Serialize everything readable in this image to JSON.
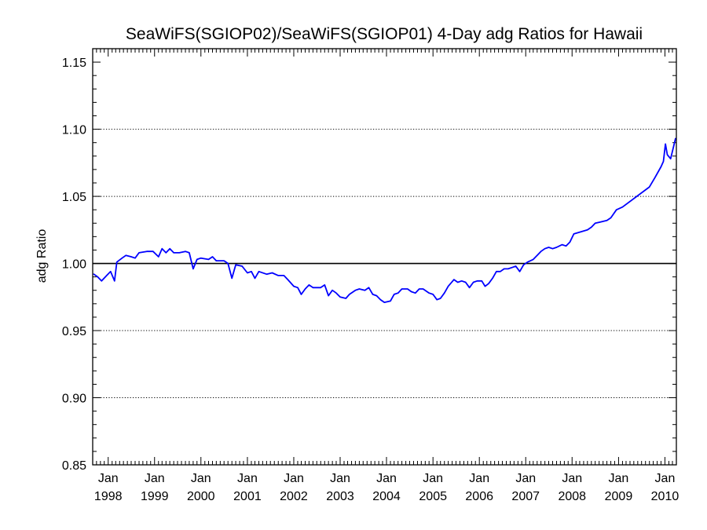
{
  "chart_data": {
    "type": "line",
    "title": "SeaWiFS(SGIOP02)/SeaWiFS(SGIOP01) 4-Day adg Ratios for Hawaii",
    "xlabel": "",
    "ylabel": "adg Ratio",
    "ylim": [
      0.85,
      1.16
    ],
    "xlim": [
      "1997-09-01",
      "2010-04-01"
    ],
    "y_ticks": [
      "0.85",
      "0.90",
      "0.95",
      "1.00",
      "1.05",
      "1.10",
      "1.15"
    ],
    "grid": "horizontal dotted lines at 0.90, 0.95, 1.05, 1.10",
    "reference_line": 1.0,
    "x_ticks": [
      {
        "month": "Jan",
        "year": "1998"
      },
      {
        "month": "Jan",
        "year": "1999"
      },
      {
        "month": "Jan",
        "year": "2000"
      },
      {
        "month": "Jan",
        "year": "2001"
      },
      {
        "month": "Jan",
        "year": "2002"
      },
      {
        "month": "Jan",
        "year": "2003"
      },
      {
        "month": "Jan",
        "year": "2004"
      },
      {
        "month": "Jan",
        "year": "2005"
      },
      {
        "month": "Jan",
        "year": "2006"
      },
      {
        "month": "Jan",
        "year": "2007"
      },
      {
        "month": "Jan",
        "year": "2008"
      },
      {
        "month": "Jan",
        "year": "2009"
      },
      {
        "month": "Jan",
        "year": "2010"
      }
    ],
    "series": [
      {
        "color": "#0000ff",
        "points": [
          [
            "1997-09-10",
            0.992
          ],
          [
            "1997-10-10",
            0.99
          ],
          [
            "1997-11-10",
            0.987
          ],
          [
            "1997-12-20",
            0.991
          ],
          [
            "1998-01-20",
            0.994
          ],
          [
            "1998-02-20",
            0.987
          ],
          [
            "1998-03-10",
            1.001
          ],
          [
            "1998-04-20",
            1.004
          ],
          [
            "1998-05-20",
            1.006
          ],
          [
            "1998-07-01",
            1.005
          ],
          [
            "1998-08-01",
            1.004
          ],
          [
            "1998-09-01",
            1.008
          ],
          [
            "1998-11-01",
            1.009
          ],
          [
            "1998-12-20",
            1.009
          ],
          [
            "1999-02-01",
            1.005
          ],
          [
            "1999-03-01",
            1.011
          ],
          [
            "1999-04-01",
            1.008
          ],
          [
            "1999-05-01",
            1.011
          ],
          [
            "1999-06-01",
            1.008
          ],
          [
            "1999-07-15",
            1.008
          ],
          [
            "1999-09-01",
            1.009
          ],
          [
            "1999-10-01",
            1.008
          ],
          [
            "1999-11-01",
            0.996
          ],
          [
            "1999-12-01",
            1.003
          ],
          [
            "2000-01-01",
            1.004
          ],
          [
            "2000-03-01",
            1.003
          ],
          [
            "2000-04-01",
            1.005
          ],
          [
            "2000-05-01",
            1.002
          ],
          [
            "2000-07-01",
            1.002
          ],
          [
            "2000-08-01",
            1.0
          ],
          [
            "2000-09-01",
            0.989
          ],
          [
            "2000-10-01",
            0.999
          ],
          [
            "2000-11-20",
            0.998
          ],
          [
            "2001-01-01",
            0.993
          ],
          [
            "2001-02-01",
            0.994
          ],
          [
            "2001-03-01",
            0.989
          ],
          [
            "2001-04-01",
            0.994
          ],
          [
            "2001-06-01",
            0.992
          ],
          [
            "2001-07-15",
            0.993
          ],
          [
            "2001-09-01",
            0.991
          ],
          [
            "2001-10-15",
            0.991
          ],
          [
            "2001-11-15",
            0.988
          ],
          [
            "2002-01-01",
            0.983
          ],
          [
            "2002-02-01",
            0.982
          ],
          [
            "2002-03-01",
            0.977
          ],
          [
            "2002-04-01",
            0.981
          ],
          [
            "2002-05-01",
            0.984
          ],
          [
            "2002-06-01",
            0.982
          ],
          [
            "2002-08-01",
            0.982
          ],
          [
            "2002-09-01",
            0.984
          ],
          [
            "2002-10-01",
            0.976
          ],
          [
            "2002-11-01",
            0.98
          ],
          [
            "2002-12-01",
            0.978
          ],
          [
            "2003-01-01",
            0.975
          ],
          [
            "2003-02-15",
            0.974
          ],
          [
            "2003-03-15",
            0.977
          ],
          [
            "2003-05-01",
            0.98
          ],
          [
            "2003-06-01",
            0.981
          ],
          [
            "2003-07-15",
            0.98
          ],
          [
            "2003-08-15",
            0.982
          ],
          [
            "2003-09-15",
            0.977
          ],
          [
            "2003-10-15",
            0.976
          ],
          [
            "2003-11-15",
            0.973
          ],
          [
            "2003-12-15",
            0.971
          ],
          [
            "2004-02-01",
            0.972
          ],
          [
            "2004-03-01",
            0.977
          ],
          [
            "2004-04-01",
            0.978
          ],
          [
            "2004-05-01",
            0.981
          ],
          [
            "2004-06-15",
            0.981
          ],
          [
            "2004-07-15",
            0.979
          ],
          [
            "2004-08-15",
            0.978
          ],
          [
            "2004-09-15",
            0.981
          ],
          [
            "2004-10-15",
            0.981
          ],
          [
            "2004-12-01",
            0.978
          ],
          [
            "2005-01-01",
            0.977
          ],
          [
            "2005-02-01",
            0.973
          ],
          [
            "2005-03-01",
            0.974
          ],
          [
            "2005-04-01",
            0.978
          ],
          [
            "2005-05-01",
            0.983
          ],
          [
            "2005-06-15",
            0.988
          ],
          [
            "2005-07-15",
            0.986
          ],
          [
            "2005-08-15",
            0.987
          ],
          [
            "2005-09-15",
            0.986
          ],
          [
            "2005-10-15",
            0.982
          ],
          [
            "2005-11-15",
            0.986
          ],
          [
            "2005-12-15",
            0.987
          ],
          [
            "2006-01-20",
            0.987
          ],
          [
            "2006-02-15",
            0.983
          ],
          [
            "2006-03-15",
            0.985
          ],
          [
            "2006-04-15",
            0.989
          ],
          [
            "2006-05-15",
            0.994
          ],
          [
            "2006-06-15",
            0.994
          ],
          [
            "2006-07-15",
            0.996
          ],
          [
            "2006-08-15",
            0.996
          ],
          [
            "2006-09-15",
            0.997
          ],
          [
            "2006-10-15",
            0.998
          ],
          [
            "2006-11-15",
            0.994
          ],
          [
            "2006-12-15",
            0.999
          ],
          [
            "2007-01-15",
            1.001
          ],
          [
            "2007-03-01",
            1.003
          ],
          [
            "2007-04-01",
            1.006
          ],
          [
            "2007-05-01",
            1.009
          ],
          [
            "2007-06-01",
            1.011
          ],
          [
            "2007-07-01",
            1.012
          ],
          [
            "2007-08-01",
            1.011
          ],
          [
            "2007-09-01",
            1.012
          ],
          [
            "2007-10-15",
            1.014
          ],
          [
            "2007-11-15",
            1.013
          ],
          [
            "2007-12-15",
            1.016
          ],
          [
            "2008-01-15",
            1.022
          ],
          [
            "2008-05-01",
            1.025
          ],
          [
            "2008-06-01",
            1.027
          ],
          [
            "2008-07-01",
            1.03
          ],
          [
            "2008-10-01",
            1.032
          ],
          [
            "2008-11-01",
            1.034
          ],
          [
            "2008-12-15",
            1.04
          ],
          [
            "2009-02-01",
            1.042
          ],
          [
            "2009-09-01",
            1.057
          ],
          [
            "2009-10-15",
            1.064
          ],
          [
            "2009-12-01",
            1.072
          ],
          [
            "2009-12-20",
            1.076
          ],
          [
            "2010-01-05",
            1.089
          ],
          [
            "2010-01-20",
            1.081
          ],
          [
            "2010-02-15",
            1.078
          ],
          [
            "2010-03-05",
            1.085
          ],
          [
            "2010-03-25",
            1.093
          ]
        ]
      }
    ]
  }
}
